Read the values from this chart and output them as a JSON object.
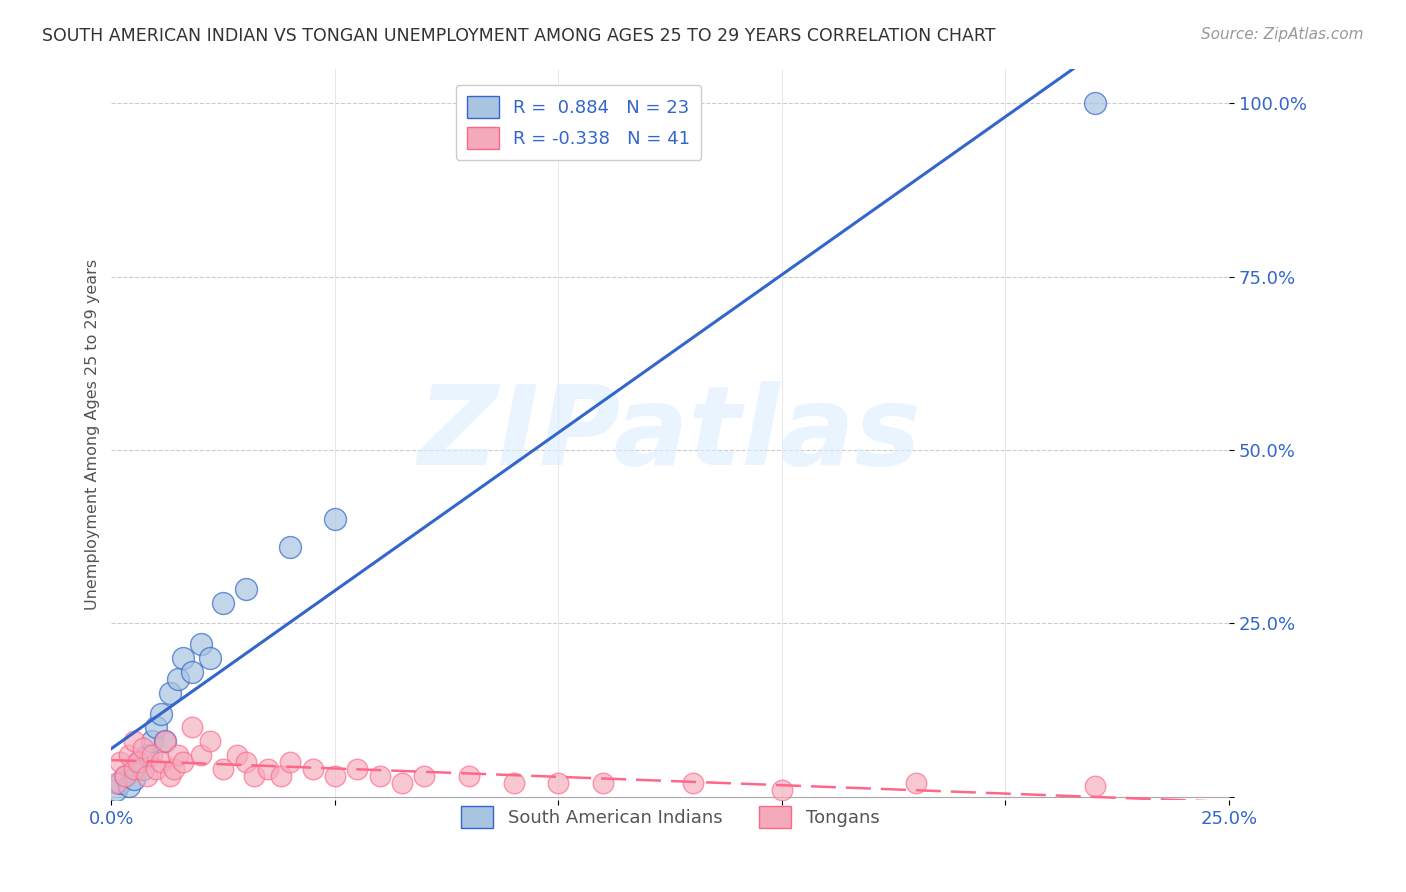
{
  "title": "SOUTH AMERICAN INDIAN VS TONGAN UNEMPLOYMENT AMONG AGES 25 TO 29 YEARS CORRELATION CHART",
  "source": "Source: ZipAtlas.com",
  "ylabel": "Unemployment Among Ages 25 to 29 years",
  "watermark": "ZIPatlas",
  "blue_R": 0.884,
  "blue_N": 23,
  "pink_R": -0.338,
  "pink_N": 41,
  "blue_color": "#A8C4E0",
  "pink_color": "#F4AABB",
  "blue_line_color": "#3366CC",
  "pink_line_color": "#FF6688",
  "legend_blue_label": "R =  0.884   N = 23",
  "legend_pink_label": "R = -0.338   N = 41",
  "legend_bottom_blue": "South American Indians",
  "legend_bottom_pink": "Tongans",
  "xlim": [
    0.0,
    0.25
  ],
  "ylim": [
    -0.005,
    1.05
  ],
  "yticks": [
    0.0,
    0.25,
    0.5,
    0.75,
    1.0
  ],
  "ytick_labels": [
    "",
    "25.0%",
    "50.0%",
    "75.0%",
    "100.0%"
  ],
  "xtick_vals": [
    0.0,
    0.05,
    0.1,
    0.15,
    0.2,
    0.25
  ],
  "xtick_labels": [
    "0.0%",
    "",
    "",
    "",
    "",
    "25.0%"
  ],
  "blue_x": [
    0.001,
    0.002,
    0.003,
    0.004,
    0.005,
    0.006,
    0.007,
    0.008,
    0.009,
    0.01,
    0.011,
    0.012,
    0.013,
    0.015,
    0.016,
    0.018,
    0.02,
    0.022,
    0.025,
    0.03,
    0.04,
    0.05,
    0.22
  ],
  "blue_y": [
    0.01,
    0.02,
    0.03,
    0.015,
    0.025,
    0.05,
    0.04,
    0.06,
    0.08,
    0.1,
    0.12,
    0.08,
    0.15,
    0.17,
    0.2,
    0.18,
    0.22,
    0.2,
    0.28,
    0.3,
    0.36,
    0.4,
    1.0
  ],
  "pink_x": [
    0.001,
    0.002,
    0.003,
    0.004,
    0.005,
    0.005,
    0.006,
    0.007,
    0.008,
    0.009,
    0.01,
    0.011,
    0.012,
    0.013,
    0.014,
    0.015,
    0.016,
    0.018,
    0.02,
    0.022,
    0.025,
    0.028,
    0.03,
    0.032,
    0.035,
    0.038,
    0.04,
    0.045,
    0.05,
    0.055,
    0.06,
    0.065,
    0.07,
    0.08,
    0.09,
    0.1,
    0.11,
    0.13,
    0.15,
    0.18,
    0.22
  ],
  "pink_y": [
    0.02,
    0.05,
    0.03,
    0.06,
    0.04,
    0.08,
    0.05,
    0.07,
    0.03,
    0.06,
    0.04,
    0.05,
    0.08,
    0.03,
    0.04,
    0.06,
    0.05,
    0.1,
    0.06,
    0.08,
    0.04,
    0.06,
    0.05,
    0.03,
    0.04,
    0.03,
    0.05,
    0.04,
    0.03,
    0.04,
    0.03,
    0.02,
    0.03,
    0.03,
    0.02,
    0.02,
    0.02,
    0.02,
    0.01,
    0.02,
    0.015
  ],
  "bg_color": "#FFFFFF",
  "grid_color": "#CCCCCC",
  "title_color": "#333333",
  "axis_label_color": "#555555",
  "tick_color": "#3366CC"
}
